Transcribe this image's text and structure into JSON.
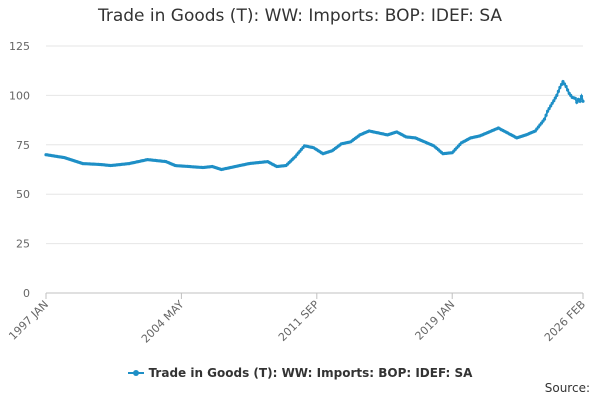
{
  "chart_data": {
    "type": "line",
    "title": "Trade in Goods (T): WW: Imports: BOP: IDEF: SA",
    "xlabel": "",
    "ylabel": "",
    "ylim": [
      0,
      125
    ],
    "yticks": [
      0,
      25,
      50,
      75,
      100,
      125
    ],
    "xlim": [
      "1997 JAN",
      "2026 FEB"
    ],
    "xticks": [
      "1997 JAN",
      "2004 MAY",
      "2011 SEP",
      "2019 JAN",
      "2026 FEB"
    ],
    "grid": true,
    "legend_position": "bottom",
    "series": [
      {
        "name": "Trade in Goods (T): WW: Imports: BOP: IDEF: SA",
        "color": "#1e8fc6",
        "points": [
          [
            "1997 JAN",
            70
          ],
          [
            "1998 JAN",
            68.5
          ],
          [
            "1999 JAN",
            65.5
          ],
          [
            "2000 JAN",
            65
          ],
          [
            "2000 JUL",
            64.5
          ],
          [
            "2001 JUL",
            65.5
          ],
          [
            "2002 JUL",
            67.5
          ],
          [
            "2003 JUL",
            66.5
          ],
          [
            "2004 JAN",
            64.5
          ],
          [
            "2005 JUL",
            63.5
          ],
          [
            "2006 JAN",
            64
          ],
          [
            "2006 JUL",
            62.5
          ],
          [
            "2007 JAN",
            63.5
          ],
          [
            "2008 JAN",
            65.5
          ],
          [
            "2009 JAN",
            66.5
          ],
          [
            "2009 JUL",
            64
          ],
          [
            "2010 JAN",
            64.5
          ],
          [
            "2010 JUL",
            69
          ],
          [
            "2011 JAN",
            74.5
          ],
          [
            "2011 JUL",
            73.5
          ],
          [
            "2012 JAN",
            70.5
          ],
          [
            "2012 JUL",
            72
          ],
          [
            "2013 JAN",
            75.5
          ],
          [
            "2013 JUL",
            76.5
          ],
          [
            "2014 JAN",
            80
          ],
          [
            "2014 JUL",
            82
          ],
          [
            "2015 JAN",
            81
          ],
          [
            "2015 JUL",
            80
          ],
          [
            "2016 JAN",
            81.5
          ],
          [
            "2016 JUL",
            79
          ],
          [
            "2017 JAN",
            78.5
          ],
          [
            "2017 JUL",
            76.5
          ],
          [
            "2018 JAN",
            74.5
          ],
          [
            "2018 JUL",
            70.5
          ],
          [
            "2019 JAN",
            71
          ],
          [
            "2019 JUL",
            76
          ],
          [
            "2020 JAN",
            78.5
          ],
          [
            "2020 JUL",
            79.5
          ],
          [
            "2021 JAN",
            81.5
          ],
          [
            "2021 JUL",
            83.5
          ],
          [
            "2022 JAN",
            81
          ],
          [
            "2022 JUL",
            78.5
          ],
          [
            "2023 JAN",
            80
          ],
          [
            "2023 JUL",
            82
          ],
          [
            "2024 JAN",
            88
          ],
          [
            "2024 MAR",
            92
          ],
          [
            "2024 JUN",
            96
          ],
          [
            "2024 SEP",
            100
          ],
          [
            "2024 NOV",
            104
          ],
          [
            "2025 JAN",
            107
          ],
          [
            "2025 MAR",
            104.5
          ],
          [
            "2025 MAY",
            101
          ],
          [
            "2025 JUL",
            99
          ],
          [
            "2025 SEP",
            98.5
          ],
          [
            "2025 OCT",
            96.5
          ],
          [
            "2025 NOV",
            98
          ],
          [
            "2025 DEC",
            97
          ],
          [
            "2026 JAN",
            99.5
          ],
          [
            "2026 FEB",
            97
          ]
        ]
      }
    ]
  },
  "legend": {
    "label": "Trade in Goods (T): WW: Imports: BOP: IDEF: SA"
  },
  "source": "Source:"
}
